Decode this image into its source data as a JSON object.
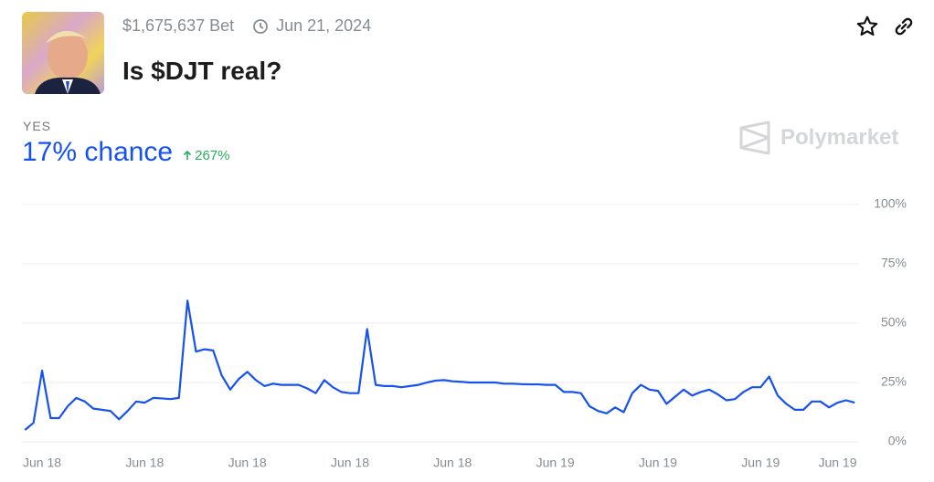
{
  "header": {
    "bet": "$1,675,637 Bet",
    "date": "Jun 21, 2024",
    "title": "Is $DJT real?",
    "outcome": "YES",
    "chance": "17% chance",
    "change": "267%",
    "brand": "Polymarket"
  },
  "chart_data": {
    "type": "line",
    "color": "#1652f0",
    "grid": true,
    "ylim": [
      0,
      100
    ],
    "yticks": [
      {
        "value": 0,
        "label": "0%"
      },
      {
        "value": 25,
        "label": "25%"
      },
      {
        "value": 50,
        "label": "50%"
      },
      {
        "value": 75,
        "label": "75%"
      },
      {
        "value": 100,
        "label": "100%"
      }
    ],
    "categories": [
      null,
      null,
      "Jun 18",
      null,
      null,
      null,
      null,
      null,
      null,
      null,
      null,
      null,
      null,
      null,
      "Jun 18",
      null,
      null,
      null,
      null,
      null,
      null,
      null,
      null,
      null,
      null,
      null,
      "Jun 18",
      null,
      null,
      null,
      null,
      null,
      null,
      null,
      null,
      null,
      null,
      null,
      "Jun 18",
      null,
      null,
      null,
      null,
      null,
      null,
      null,
      null,
      null,
      null,
      null,
      "Jun 18",
      null,
      null,
      null,
      null,
      null,
      null,
      null,
      null,
      null,
      null,
      null,
      "Jun 19",
      null,
      null,
      null,
      null,
      null,
      null,
      null,
      null,
      null,
      null,
      null,
      "Jun 19",
      null,
      null,
      null,
      null,
      null,
      null,
      null,
      null,
      null,
      null,
      null,
      "Jun 19",
      null,
      null,
      null,
      null,
      null,
      null,
      null,
      null,
      "Jun 19",
      null,
      null
    ],
    "values": [
      5,
      8,
      30,
      10,
      10,
      15,
      18.5,
      17,
      14,
      13.5,
      13,
      9.5,
      13,
      17,
      16.5,
      18.5,
      18.3,
      18,
      18.5,
      59.5,
      38,
      39,
      38.5,
      28,
      22,
      26.5,
      29.5,
      26,
      23.5,
      24.5,
      24,
      24,
      24,
      22.5,
      20.5,
      26,
      23,
      21,
      20.5,
      20.5,
      47.5,
      24,
      23.5,
      23.5,
      23,
      23.5,
      24,
      25,
      25.8,
      26,
      25.5,
      25.3,
      25,
      25,
      25,
      25,
      24.5,
      24.5,
      24.3,
      24.2,
      24.2,
      24,
      24,
      21,
      21,
      20.5,
      15,
      13,
      12,
      14.5,
      12.5,
      20.5,
      24,
      22,
      21.5,
      16,
      19,
      22,
      19.5,
      21,
      22,
      20,
      17.5,
      18,
      21,
      23,
      23,
      27.5,
      19.5,
      16,
      13.5,
      13.5,
      17,
      17,
      14.5,
      16.5,
      17.5,
      16.5
    ]
  }
}
